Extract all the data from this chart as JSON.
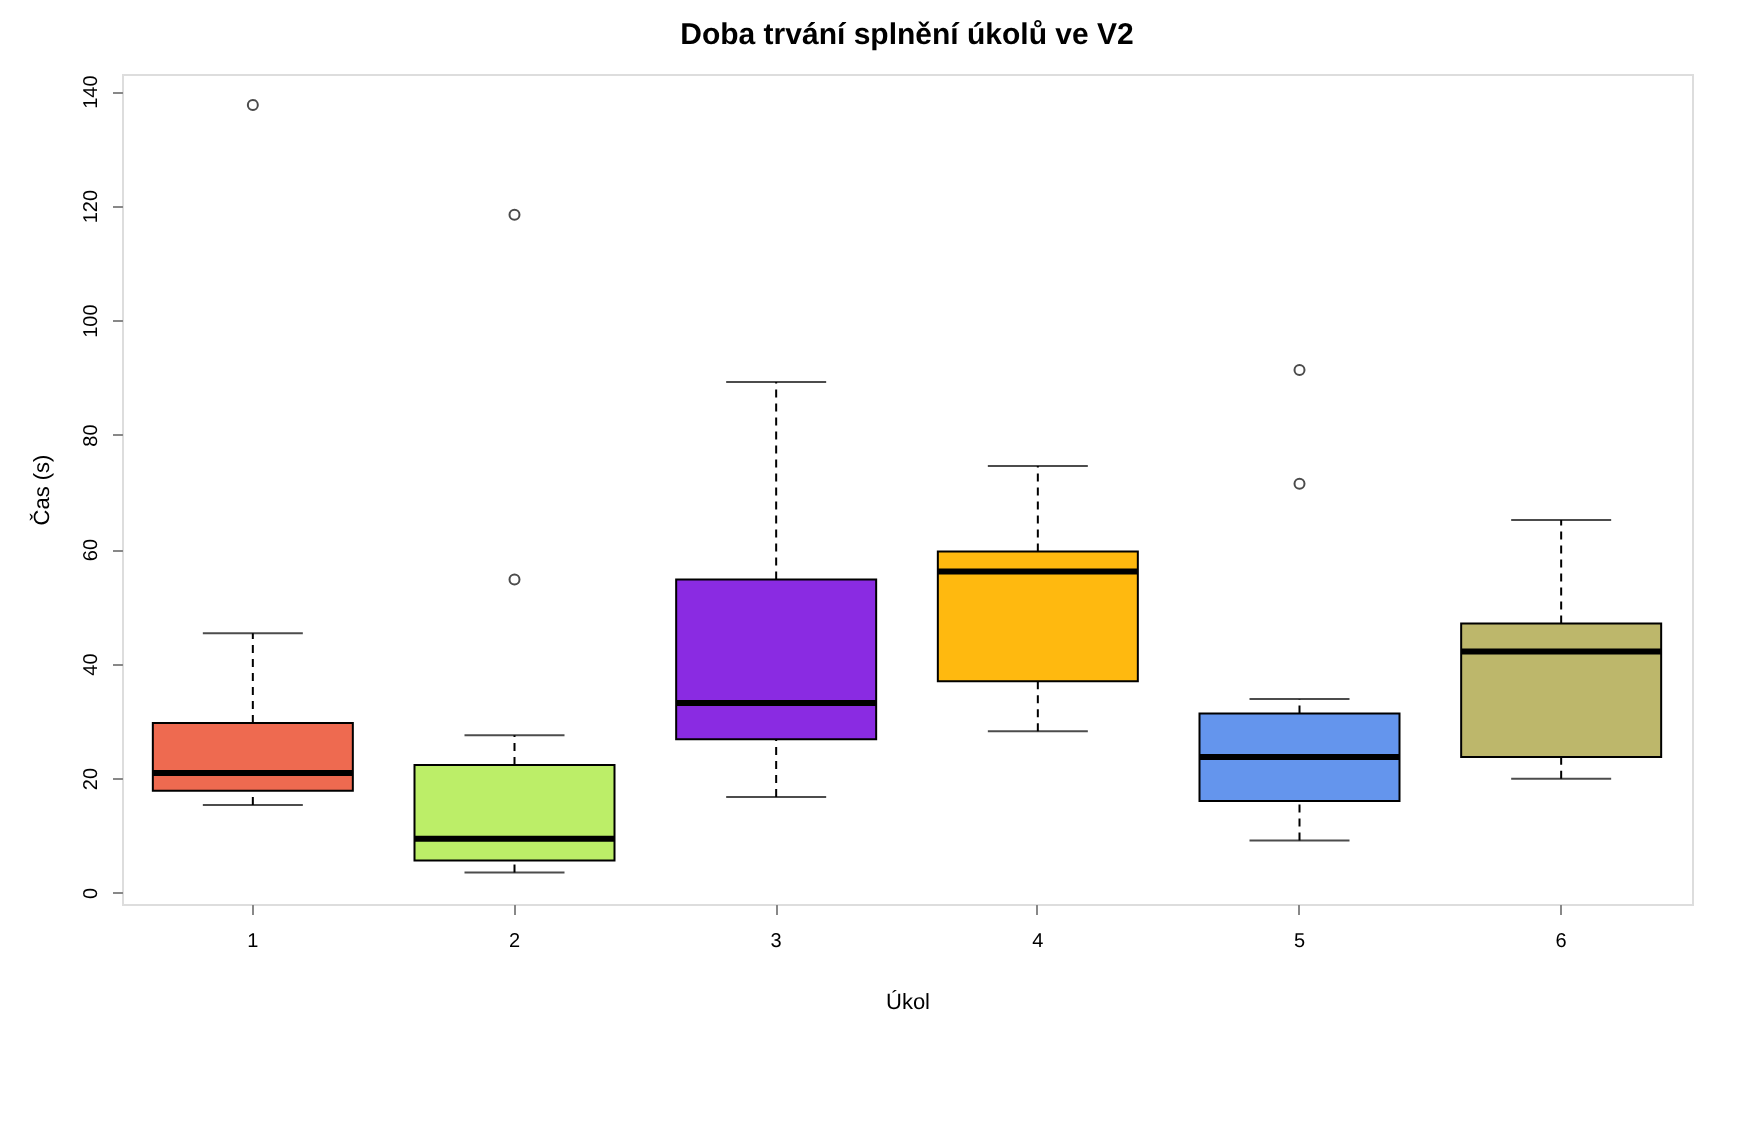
{
  "chart_data": {
    "type": "box",
    "title": "Doba trvání splnění úkolů ve V2",
    "xlabel": "Úkol",
    "ylabel": "Čas (s)",
    "categories": [
      "1",
      "2",
      "3",
      "4",
      "5",
      "6"
    ],
    "colors": [
      "#ee6a50",
      "#bcee68",
      "#8a2be2",
      "#ffb90f",
      "#6495ed",
      "#bdb76b"
    ],
    "boxes": [
      {
        "low": 15.3,
        "q1": 17.8,
        "median": 20.9,
        "q3": 29.6,
        "high": 45.3,
        "outliers": [
          137.6
        ]
      },
      {
        "low": 3.5,
        "q1": 5.6,
        "median": 9.4,
        "q3": 22.3,
        "high": 27.5,
        "outliers": [
          54.7,
          118.4
        ]
      },
      {
        "low": 16.7,
        "q1": 26.8,
        "median": 33.1,
        "q3": 54.7,
        "high": 89.2
      },
      {
        "low": 28.2,
        "q1": 36.9,
        "median": 56.1,
        "q3": 59.6,
        "high": 74.5
      },
      {
        "low": 9.1,
        "q1": 16.0,
        "median": 23.7,
        "q3": 31.3,
        "high": 33.8,
        "outliers": [
          71.4,
          91.3
        ]
      },
      {
        "low": 19.9,
        "q1": 23.7,
        "median": 42.1,
        "q3": 47.0,
        "high": 65.1
      }
    ],
    "ylim": [
      -2,
      143
    ],
    "yticks": [
      0,
      20,
      40,
      60,
      80,
      100,
      120,
      140
    ],
    "grid": false
  }
}
